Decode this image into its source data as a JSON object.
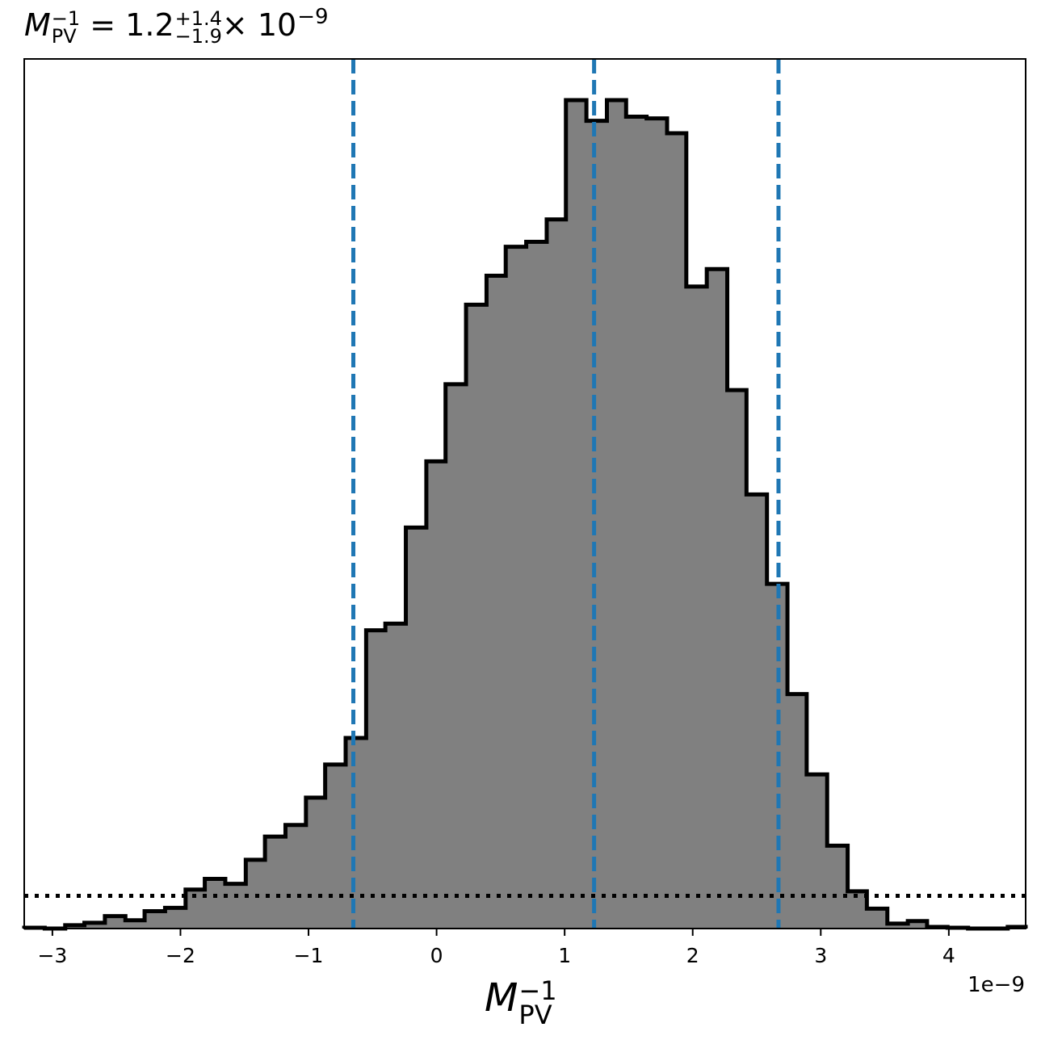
{
  "chart_data": {
    "type": "histogram",
    "title": {
      "variable": "M",
      "variable_subscript": "PV",
      "variable_superscript": "−1",
      "equals": " = 1.2",
      "upper_error": "+1.4",
      "lower_error": "−1.9",
      "multiplier": "× 10",
      "exponent": "−9"
    },
    "xlabel": {
      "variable": "M",
      "subscript": "PV",
      "superscript": "−1"
    },
    "x_offset_label": "1e−9",
    "xlim": [
      -3.22,
      4.6
    ],
    "ylim": [
      0,
      1.0
    ],
    "xticks": [
      -3,
      -2,
      -1,
      0,
      1,
      2,
      3,
      4
    ],
    "xtick_labels": [
      "−3",
      "−2",
      "−1",
      "0",
      "1",
      "2",
      "3",
      "4"
    ],
    "yticks_visible": false,
    "bin_edges": [
      -3.22,
      -3.06,
      -2.9,
      -2.75,
      -2.59,
      -2.43,
      -2.28,
      -2.12,
      -1.96,
      -1.81,
      -1.65,
      -1.49,
      -1.34,
      -1.18,
      -1.02,
      -0.87,
      -0.71,
      -0.55,
      -0.4,
      -0.24,
      -0.08,
      0.07,
      0.23,
      0.39,
      0.54,
      0.7,
      0.86,
      1.01,
      1.17,
      1.33,
      1.48,
      1.64,
      1.8,
      1.95,
      2.11,
      2.27,
      2.42,
      2.58,
      2.74,
      2.89,
      3.05,
      3.21,
      3.36,
      3.52,
      3.68,
      3.83,
      3.99,
      4.15,
      4.3,
      4.46,
      4.6
    ],
    "counts": [
      0.001,
      0.0,
      0.004,
      0.007,
      0.015,
      0.01,
      0.021,
      0.025,
      0.047,
      0.06,
      0.054,
      0.083,
      0.111,
      0.125,
      0.158,
      0.198,
      0.23,
      0.36,
      0.368,
      0.484,
      0.564,
      0.657,
      0.753,
      0.788,
      0.823,
      0.829,
      0.856,
      1.0,
      0.975,
      1.0,
      0.98,
      0.978,
      0.96,
      0.775,
      0.796,
      0.65,
      0.524,
      0.416,
      0.283,
      0.186,
      0.1,
      0.045,
      0.024,
      0.006,
      0.009,
      0.002,
      0.001,
      0.0,
      0.0,
      0.002
    ],
    "fill_color": "#808080",
    "edge_color": "#000000",
    "quantile_lines": {
      "values": [
        -0.65,
        1.23,
        2.67
      ],
      "color": "#1f77b4",
      "style": "dashed"
    },
    "prior_level": {
      "value": 0.0395,
      "color": "#000000",
      "style": "dotted"
    },
    "grid": false,
    "legend": "none"
  }
}
